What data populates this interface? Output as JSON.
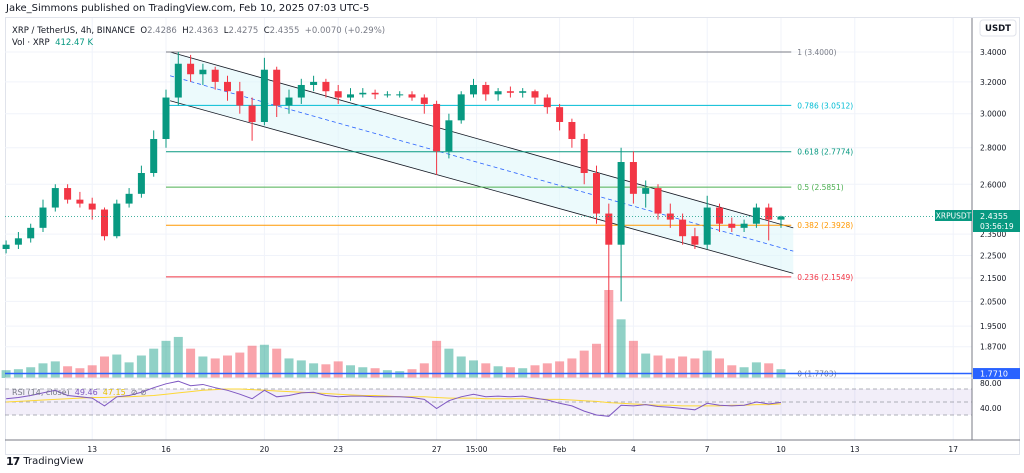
{
  "header": {
    "published": "Jake_Simmons published on TradingView.com, Feb 10, 2025 07:03 UTC-5"
  },
  "legend": {
    "symbol": "XRP / TetherUS, 4h, BINANCE",
    "o_label": "O",
    "o": "2.4286",
    "h_label": "H",
    "h": "2.4363",
    "l_label": "L",
    "l": "2.4275",
    "c_label": "C",
    "c": "2.4355",
    "change": "+0.0070 (+0.29%)",
    "vol_label": "Vol · XRP",
    "vol": "412.47 K"
  },
  "rsi_legend": {
    "label": "RSI (14, close)",
    "value": "49.46",
    "ma": "47.15"
  },
  "axis": {
    "currency": "USDT",
    "last_symbol": "XRPUSDT",
    "last_price": "2.4355",
    "countdown": "03:56:19",
    "hline_price": "1.7710",
    "rsi_ticks": [
      "80.00",
      "40.00"
    ]
  },
  "footer": {
    "brand": "TradingView"
  },
  "colors": {
    "up": "#089981",
    "down": "#f23645",
    "rsi": "#7e57c2",
    "rsi_ma": "#fdd835",
    "channel_fill": "#e0f7fa",
    "hline": "#2962ff"
  },
  "chart_data": {
    "type": "candlestick",
    "yscale": "log",
    "ylim": [
      1.75,
      3.52
    ],
    "y_ticks": [
      3.4,
      3.2,
      3.0,
      2.8,
      2.6,
      2.35,
      2.25,
      2.15,
      2.05,
      1.95,
      1.87
    ],
    "x_ticks": [
      {
        "label": "13",
        "t": "2025-01-13 00:00"
      },
      {
        "label": "16",
        "t": "2025-01-16 00:00"
      },
      {
        "label": "20",
        "t": "2025-01-20 00:00"
      },
      {
        "label": "23",
        "t": "2025-01-23 00:00"
      },
      {
        "label": "27",
        "t": "2025-01-27 00:00"
      },
      {
        "label": "15:00",
        "t": "2025-01-28 15:00"
      },
      {
        "label": "Feb",
        "t": "2025-02-01 00:00"
      },
      {
        "label": "4",
        "t": "2025-02-04 00:00"
      },
      {
        "label": "7",
        "t": "2025-02-07 00:00"
      },
      {
        "label": "10",
        "t": "2025-02-10 00:00"
      },
      {
        "label": "13",
        "t": "2025-02-13 00:00"
      },
      {
        "label": "17",
        "t": "2025-02-17 00:00"
      }
    ],
    "candles": [
      [
        "2025-01-09 12:00",
        2.28,
        2.32,
        2.26,
        2.3,
        80
      ],
      [
        "2025-01-10 00:00",
        2.3,
        2.36,
        2.28,
        2.33,
        90
      ],
      [
        "2025-01-10 12:00",
        2.33,
        2.4,
        2.31,
        2.38,
        110
      ],
      [
        "2025-01-11 00:00",
        2.38,
        2.52,
        2.36,
        2.48,
        150
      ],
      [
        "2025-01-11 12:00",
        2.48,
        2.6,
        2.46,
        2.58,
        170
      ],
      [
        "2025-01-12 00:00",
        2.58,
        2.6,
        2.5,
        2.52,
        120
      ],
      [
        "2025-01-12 12:00",
        2.52,
        2.56,
        2.48,
        2.5,
        100
      ],
      [
        "2025-01-13 00:00",
        2.5,
        2.53,
        2.42,
        2.47,
        130
      ],
      [
        "2025-01-13 12:00",
        2.47,
        2.48,
        2.32,
        2.34,
        220
      ],
      [
        "2025-01-14 00:00",
        2.34,
        2.52,
        2.33,
        2.5,
        240
      ],
      [
        "2025-01-14 12:00",
        2.5,
        2.58,
        2.48,
        2.55,
        160
      ],
      [
        "2025-01-15 00:00",
        2.55,
        2.7,
        2.53,
        2.66,
        230
      ],
      [
        "2025-01-15 12:00",
        2.66,
        2.9,
        2.64,
        2.85,
        300
      ],
      [
        "2025-01-16 00:00",
        2.85,
        3.15,
        2.8,
        3.1,
        380
      ],
      [
        "2025-01-16 12:00",
        3.1,
        3.4,
        3.05,
        3.32,
        420
      ],
      [
        "2025-01-17 00:00",
        3.32,
        3.38,
        3.2,
        3.25,
        300
      ],
      [
        "2025-01-17 12:00",
        3.25,
        3.32,
        3.18,
        3.28,
        220
      ],
      [
        "2025-01-18 00:00",
        3.28,
        3.3,
        3.15,
        3.2,
        200
      ],
      [
        "2025-01-18 12:00",
        3.2,
        3.24,
        3.08,
        3.14,
        230
      ],
      [
        "2025-01-19 00:00",
        3.14,
        3.2,
        3.0,
        3.05,
        260
      ],
      [
        "2025-01-19 12:00",
        3.05,
        3.1,
        2.84,
        2.95,
        330
      ],
      [
        "2025-01-20 00:00",
        2.95,
        3.36,
        2.93,
        3.28,
        340
      ],
      [
        "2025-01-20 12:00",
        3.28,
        3.3,
        2.98,
        3.05,
        300
      ],
      [
        "2025-01-21 00:00",
        3.05,
        3.15,
        3.0,
        3.1,
        200
      ],
      [
        "2025-01-21 12:00",
        3.1,
        3.22,
        3.06,
        3.18,
        180
      ],
      [
        "2025-01-22 00:00",
        3.18,
        3.24,
        3.14,
        3.2,
        150
      ],
      [
        "2025-01-22 12:00",
        3.2,
        3.22,
        3.1,
        3.14,
        140
      ],
      [
        "2025-01-23 00:00",
        3.14,
        3.18,
        3.06,
        3.1,
        170
      ],
      [
        "2025-01-23 12:00",
        3.1,
        3.16,
        3.08,
        3.12,
        130
      ],
      [
        "2025-01-24 00:00",
        3.12,
        3.16,
        3.1,
        3.13,
        110
      ],
      [
        "2025-01-24 12:00",
        3.13,
        3.15,
        3.09,
        3.12,
        100
      ],
      [
        "2025-01-25 00:00",
        3.12,
        3.14,
        3.1,
        3.12,
        80
      ],
      [
        "2025-01-25 12:00",
        3.12,
        3.14,
        3.1,
        3.12,
        70
      ],
      [
        "2025-01-26 00:00",
        3.12,
        3.14,
        3.08,
        3.1,
        90
      ],
      [
        "2025-01-26 12:00",
        3.1,
        3.12,
        3.0,
        3.06,
        150
      ],
      [
        "2025-01-27 00:00",
        3.06,
        3.08,
        2.65,
        2.78,
        380
      ],
      [
        "2025-01-27 12:00",
        2.78,
        3.0,
        2.74,
        2.96,
        300
      ],
      [
        "2025-01-28 00:00",
        2.96,
        3.14,
        2.94,
        3.12,
        220
      ],
      [
        "2025-01-28 12:00",
        3.12,
        3.22,
        3.1,
        3.18,
        180
      ],
      [
        "2025-01-29 00:00",
        3.18,
        3.2,
        3.08,
        3.12,
        150
      ],
      [
        "2025-01-29 12:00",
        3.12,
        3.16,
        3.08,
        3.14,
        120
      ],
      [
        "2025-01-30 00:00",
        3.14,
        3.17,
        3.1,
        3.13,
        110
      ],
      [
        "2025-01-30 12:00",
        3.13,
        3.16,
        3.1,
        3.14,
        100
      ],
      [
        "2025-01-31 00:00",
        3.14,
        3.15,
        3.06,
        3.1,
        130
      ],
      [
        "2025-01-31 12:00",
        3.1,
        3.12,
        3.0,
        3.04,
        150
      ],
      [
        "2025-02-01 00:00",
        3.04,
        3.06,
        2.9,
        2.95,
        170
      ],
      [
        "2025-02-01 12:00",
        2.95,
        2.97,
        2.8,
        2.85,
        200
      ],
      [
        "2025-02-02 00:00",
        2.85,
        2.88,
        2.6,
        2.66,
        280
      ],
      [
        "2025-02-02 12:00",
        2.66,
        2.7,
        2.4,
        2.45,
        350
      ],
      [
        "2025-02-03 00:00",
        2.45,
        2.5,
        1.77,
        2.3,
        900
      ],
      [
        "2025-02-03 12:00",
        2.3,
        2.8,
        2.05,
        2.72,
        600
      ],
      [
        "2025-02-04 00:00",
        2.72,
        2.78,
        2.5,
        2.55,
        380
      ],
      [
        "2025-02-04 12:00",
        2.55,
        2.62,
        2.48,
        2.58,
        250
      ],
      [
        "2025-02-05 00:00",
        2.58,
        2.6,
        2.42,
        2.45,
        230
      ],
      [
        "2025-02-05 12:00",
        2.45,
        2.5,
        2.38,
        2.42,
        200
      ],
      [
        "2025-02-06 00:00",
        2.42,
        2.45,
        2.3,
        2.34,
        220
      ],
      [
        "2025-02-06 12:00",
        2.34,
        2.38,
        2.28,
        2.3,
        200
      ],
      [
        "2025-02-07 00:00",
        2.3,
        2.54,
        2.28,
        2.48,
        280
      ],
      [
        "2025-02-07 12:00",
        2.48,
        2.5,
        2.36,
        2.4,
        200
      ],
      [
        "2025-02-08 00:00",
        2.4,
        2.43,
        2.36,
        2.38,
        130
      ],
      [
        "2025-02-08 12:00",
        2.38,
        2.42,
        2.36,
        2.4,
        110
      ],
      [
        "2025-02-09 00:00",
        2.4,
        2.5,
        2.38,
        2.48,
        160
      ],
      [
        "2025-02-09 12:00",
        2.48,
        2.5,
        2.32,
        2.42,
        150
      ],
      [
        "2025-02-10 00:00",
        2.42,
        2.44,
        2.38,
        2.4355,
        90
      ]
    ],
    "rsi": [
      55,
      57,
      60,
      64,
      68,
      60,
      58,
      56,
      44,
      58,
      60,
      65,
      72,
      78,
      82,
      75,
      77,
      72,
      68,
      62,
      55,
      68,
      58,
      60,
      64,
      65,
      60,
      58,
      59,
      59,
      58,
      58,
      58,
      57,
      54,
      40,
      52,
      58,
      62,
      58,
      59,
      58,
      59,
      56,
      53,
      48,
      44,
      36,
      30,
      28,
      45,
      44,
      46,
      43,
      42,
      40,
      38,
      48,
      45,
      44,
      45,
      50,
      47,
      49.46
    ],
    "rsi_ma": [
      50,
      51,
      52,
      53,
      54,
      55,
      56,
      57,
      57,
      58,
      58,
      59,
      60,
      62,
      64,
      66,
      68,
      69,
      70,
      70,
      69,
      68,
      67,
      66,
      65,
      64,
      63,
      62,
      61,
      60,
      60,
      59,
      58,
      58,
      58,
      57,
      56,
      56,
      56,
      55,
      55,
      55,
      55,
      55,
      54,
      54,
      53,
      52,
      51,
      49,
      48,
      47,
      46,
      45,
      45,
      44,
      44,
      44,
      44,
      45,
      45,
      46,
      46,
      47.15
    ],
    "rsi_levels": [
      70,
      50,
      30
    ],
    "fib": {
      "start": "2025-01-16 00:00",
      "end": "2025-02-10 10:00",
      "levels": [
        {
          "label": "1 (3.4000)",
          "price": 3.4,
          "color": "#787b86"
        },
        {
          "label": "0.786 (3.0512)",
          "price": 3.0512,
          "color": "#00bcd4"
        },
        {
          "label": "0.618 (2.7774)",
          "price": 2.7774,
          "color": "#089981"
        },
        {
          "label": "0.5 (2.5851)",
          "price": 2.5851,
          "color": "#4caf50"
        },
        {
          "label": "0.382 (2.3928)",
          "price": 2.3928,
          "color": "#ff9800"
        },
        {
          "label": "0.236 (2.1549)",
          "price": 2.1549,
          "color": "#f23645"
        },
        {
          "label": "0 (1.7703)",
          "price": 1.7703,
          "color": "#787b86"
        }
      ]
    },
    "channel": {
      "upper": [
        [
          "2025-01-16 04:00",
          3.4
        ],
        [
          "2025-02-10 12:00",
          2.38
        ]
      ],
      "lower": [
        [
          "2025-01-16 04:00",
          3.08
        ],
        [
          "2025-02-10 12:00",
          2.17
        ]
      ],
      "middle": [
        [
          "2025-01-16 04:00",
          3.24
        ],
        [
          "2025-02-10 12:00",
          2.27
        ]
      ]
    },
    "last_price": 2.4355,
    "hline": 1.771
  }
}
